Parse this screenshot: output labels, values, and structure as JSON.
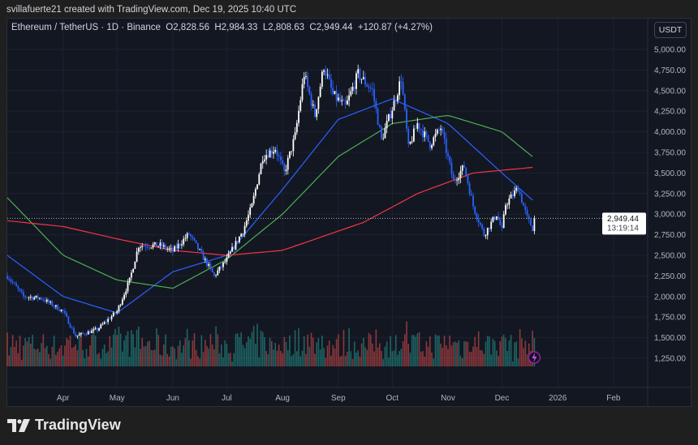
{
  "header": {
    "credit": "svillafuerte21 created with TradingView.com, Dec 19, 2025 10:40 UTC"
  },
  "legend": {
    "symbol": "Ethereum / TetherUS · 1D · Binance",
    "open": "O2,828.56",
    "high": "H2,984.33",
    "low": "L2,808.63",
    "close": "C2,949.44",
    "change": "+120.87 (+4.27%)"
  },
  "unit_button": "USDT",
  "price_label": {
    "price": "2,949.44",
    "countdown": "13:19:14"
  },
  "brand": "TradingView",
  "chart_data": {
    "type": "candlestick",
    "colors": {
      "up": "#ffffff",
      "down": "#2962ff",
      "ma_fast": "#2962ff",
      "ma_mid": "#4caf50",
      "ma_slow": "#f23645",
      "vol_up": "#26a69a",
      "vol_down": "#ef5350",
      "background": "#131722"
    },
    "ylim": [
      1100,
      5150
    ],
    "y_ticks": [
      "1,250.00",
      "1,500.00",
      "1,750.00",
      "2,000.00",
      "2,250.00",
      "2,500.00",
      "2,750.00",
      "3,000.00",
      "3,250.00",
      "3,500.00",
      "3,750.00",
      "4,000.00",
      "4,250.00",
      "4,500.00",
      "4,750.00",
      "5,000.00"
    ],
    "x_ticks": [
      "Apr",
      "May",
      "Jun",
      "Jul",
      "Aug",
      "Sep",
      "Oct",
      "Nov",
      "Dec",
      "2026",
      "Feb"
    ],
    "x_tick_dates": [
      "2025-04-01",
      "2025-05-01",
      "2025-06-01",
      "2025-07-01",
      "2025-08-01",
      "2025-09-01",
      "2025-10-01",
      "2025-11-01",
      "2025-12-01",
      "2026-01-01",
      "2026-02-01"
    ],
    "xlim": [
      "2025-03-01",
      "2026-02-20"
    ],
    "price_path": [
      [
        "2025-03-01",
        2250
      ],
      [
        "2025-03-10",
        2000
      ],
      [
        "2025-03-20",
        1980
      ],
      [
        "2025-04-01",
        1820
      ],
      [
        "2025-04-08",
        1520
      ],
      [
        "2025-04-20",
        1600
      ],
      [
        "2025-05-01",
        1820
      ],
      [
        "2025-05-08",
        2200
      ],
      [
        "2025-05-13",
        2620
      ],
      [
        "2025-05-25",
        2620
      ],
      [
        "2025-06-01",
        2550
      ],
      [
        "2025-06-10",
        2760
      ],
      [
        "2025-06-20",
        2400
      ],
      [
        "2025-06-24",
        2250
      ],
      [
        "2025-07-01",
        2450
      ],
      [
        "2025-07-10",
        2800
      ],
      [
        "2025-07-15",
        3100
      ],
      [
        "2025-07-21",
        3700
      ],
      [
        "2025-07-28",
        3800
      ],
      [
        "2025-08-02",
        3500
      ],
      [
        "2025-08-08",
        3950
      ],
      [
        "2025-08-13",
        4700
      ],
      [
        "2025-08-19",
        4200
      ],
      [
        "2025-08-24",
        4800
      ],
      [
        "2025-08-29",
        4450
      ],
      [
        "2025-09-05",
        4300
      ],
      [
        "2025-09-12",
        4700
      ],
      [
        "2025-09-20",
        4500
      ],
      [
        "2025-09-25",
        3900
      ],
      [
        "2025-10-02",
        4350
      ],
      [
        "2025-10-06",
        4650
      ],
      [
        "2025-10-10",
        3800
      ],
      [
        "2025-10-15",
        4100
      ],
      [
        "2025-10-22",
        3850
      ],
      [
        "2025-10-28",
        4050
      ],
      [
        "2025-11-04",
        3400
      ],
      [
        "2025-11-10",
        3580
      ],
      [
        "2025-11-15",
        3100
      ],
      [
        "2025-11-21",
        2750
      ],
      [
        "2025-11-28",
        3000
      ],
      [
        "2025-12-01",
        2800
      ],
      [
        "2025-12-03",
        3120
      ],
      [
        "2025-12-10",
        3320
      ],
      [
        "2025-12-15",
        2950
      ],
      [
        "2025-12-18",
        2830
      ],
      [
        "2025-12-19",
        2949.44
      ]
    ],
    "ma_fast": [
      [
        "2025-03-01",
        2500
      ],
      [
        "2025-04-01",
        2000
      ],
      [
        "2025-05-01",
        1800
      ],
      [
        "2025-06-01",
        2300
      ],
      [
        "2025-07-01",
        2500
      ],
      [
        "2025-08-01",
        3300
      ],
      [
        "2025-09-01",
        4150
      ],
      [
        "2025-10-01",
        4400
      ],
      [
        "2025-11-01",
        4100
      ],
      [
        "2025-12-01",
        3500
      ],
      [
        "2025-12-19",
        3150
      ]
    ],
    "ma_mid": [
      [
        "2025-03-01",
        3200
      ],
      [
        "2025-04-01",
        2500
      ],
      [
        "2025-05-01",
        2200
      ],
      [
        "2025-06-01",
        2100
      ],
      [
        "2025-07-01",
        2450
      ],
      [
        "2025-08-01",
        3000
      ],
      [
        "2025-09-01",
        3700
      ],
      [
        "2025-10-01",
        4100
      ],
      [
        "2025-11-01",
        4200
      ],
      [
        "2025-12-01",
        4000
      ],
      [
        "2025-12-19",
        3680
      ]
    ],
    "ma_slow": [
      [
        "2025-03-01",
        2920
      ],
      [
        "2025-04-01",
        2850
      ],
      [
        "2025-05-01",
        2700
      ],
      [
        "2025-06-01",
        2560
      ],
      [
        "2025-07-01",
        2500
      ],
      [
        "2025-08-01",
        2560
      ],
      [
        "2025-09-15",
        2900
      ],
      [
        "2025-10-15",
        3250
      ],
      [
        "2025-11-15",
        3500
      ],
      [
        "2025-12-19",
        3570
      ]
    ],
    "last_price": 2949.44
  }
}
